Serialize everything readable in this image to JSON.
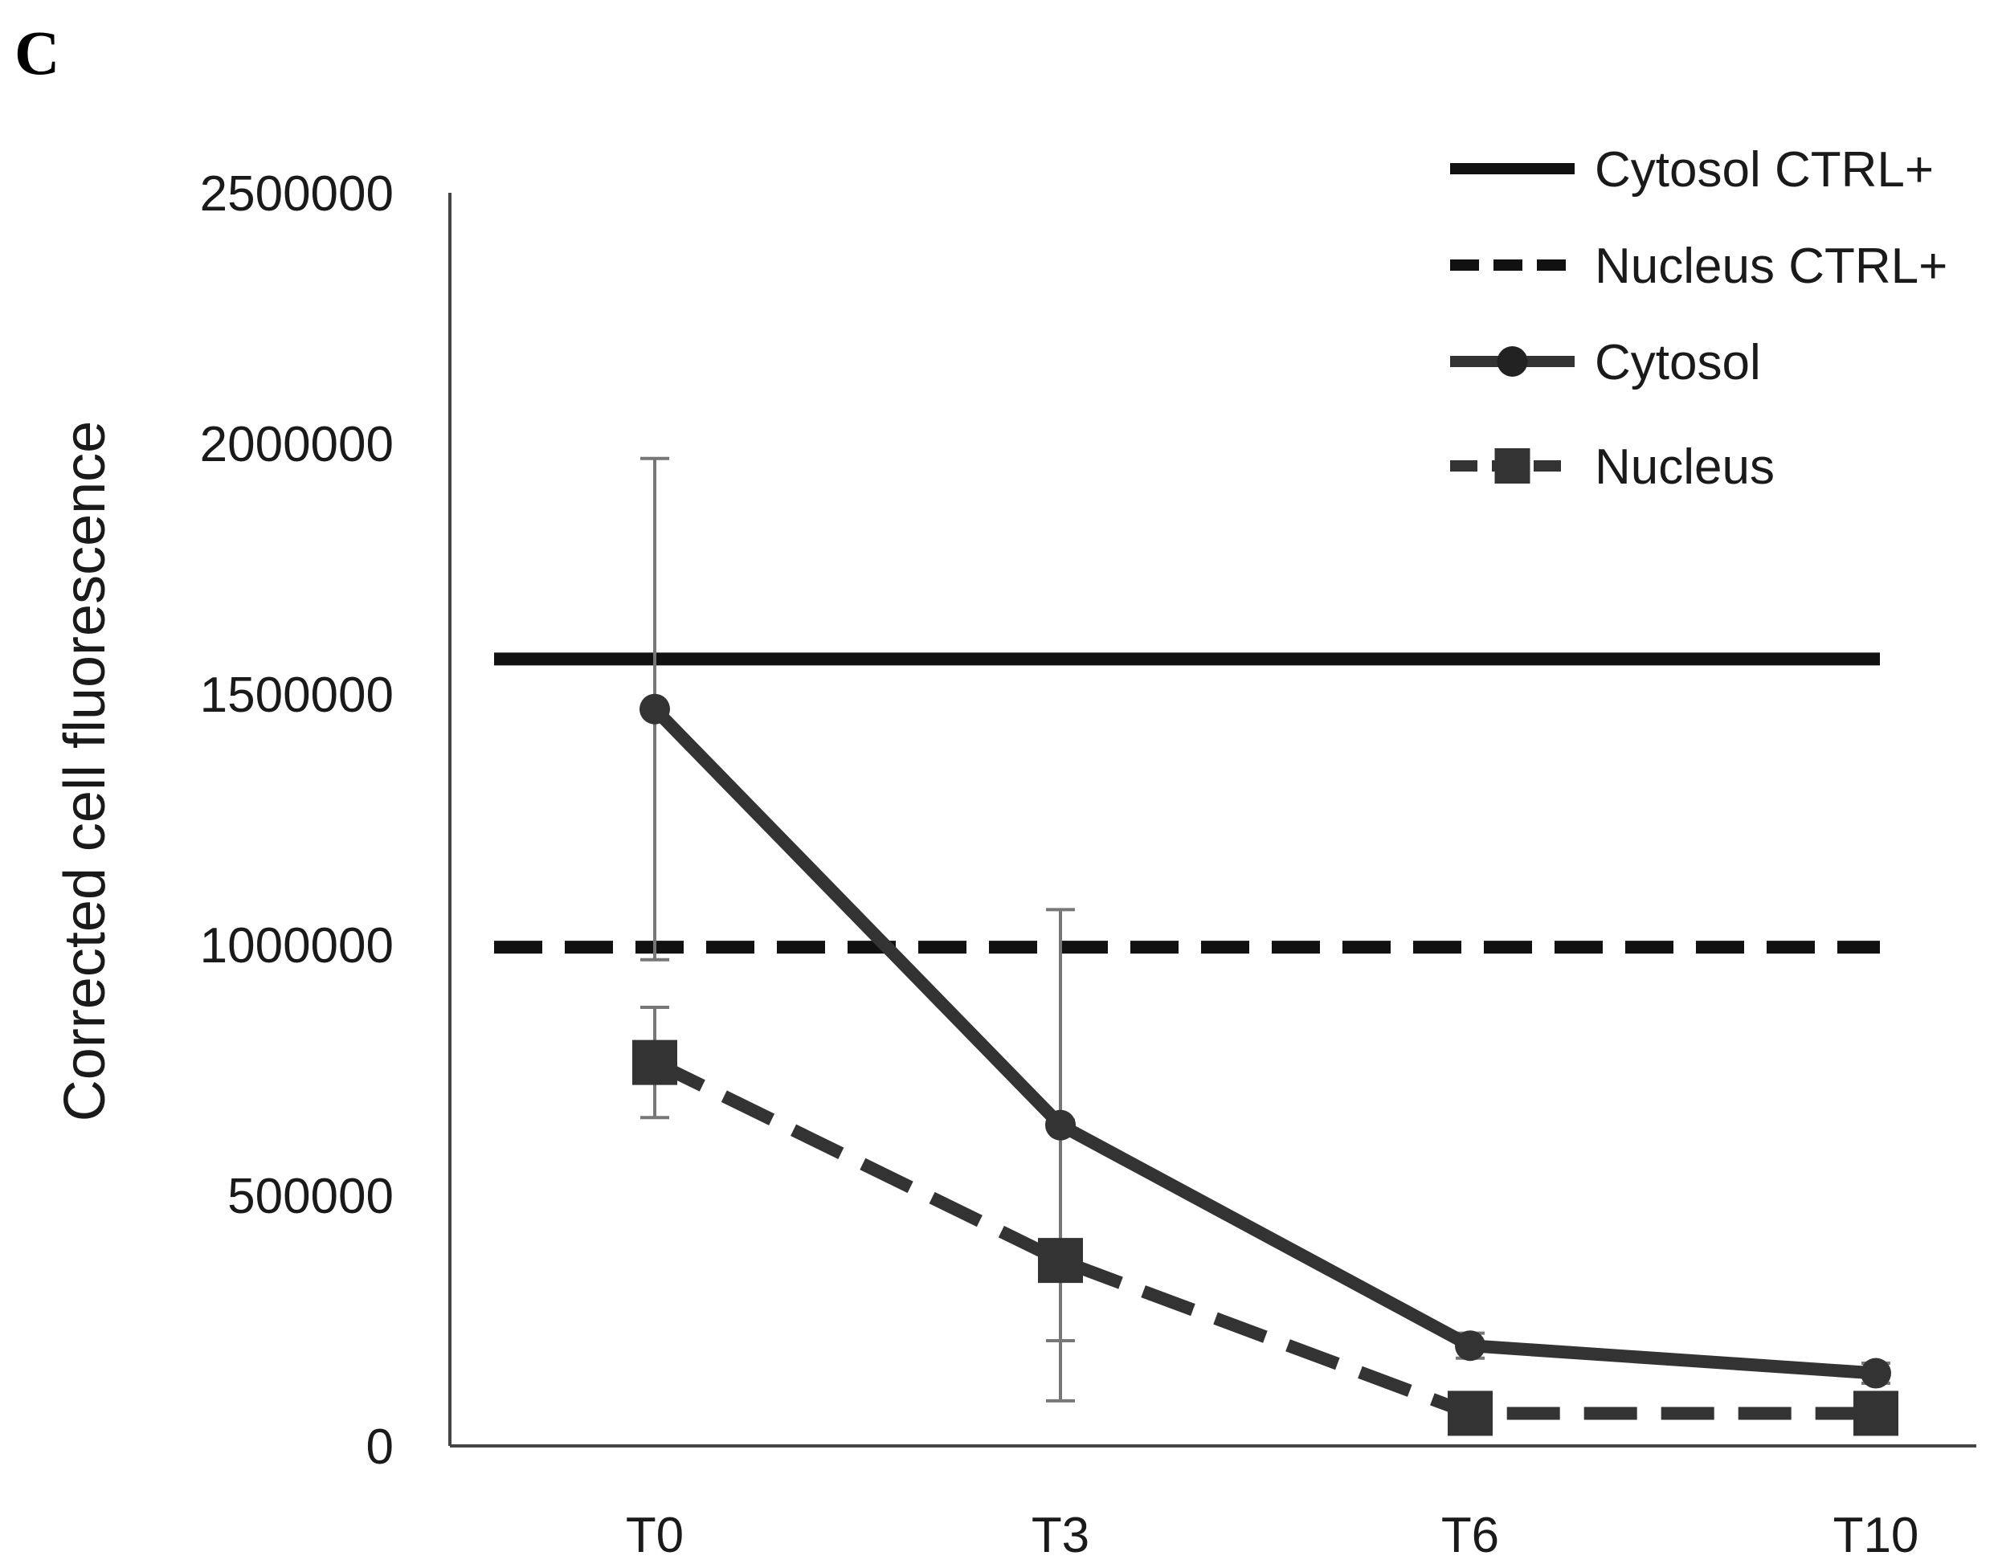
{
  "panel_label": "C",
  "chart_data": {
    "type": "line",
    "title": "",
    "xlabel": "",
    "ylabel": "Corrected cell fluorescence",
    "categories": [
      "T0",
      "T3",
      "T6",
      "T10"
    ],
    "ylim": [
      0,
      2500000
    ],
    "yticks": [
      0,
      500000,
      1000000,
      1500000,
      2000000,
      2500000
    ],
    "ytick_labels": [
      "0",
      "500000",
      "1000000",
      "1500000",
      "2000000",
      "2500000"
    ],
    "grid": false,
    "legend_position": "top-right",
    "series": [
      {
        "name": "Cytosol CTRL+",
        "kind": "reference-line",
        "style": "solid",
        "color": "#111111",
        "value": 1570000
      },
      {
        "name": "Nucleus CTRL+",
        "kind": "reference-line",
        "style": "dashed",
        "color": "#111111",
        "value": 995000
      },
      {
        "name": "Cytosol",
        "kind": "series",
        "style": "solid",
        "marker": "circle",
        "color": "#333333",
        "values": [
          1470000,
          640000,
          200000,
          145000
        ],
        "error": [
          500000,
          430000,
          25000,
          20000
        ]
      },
      {
        "name": "Nucleus",
        "kind": "series",
        "style": "dashed",
        "marker": "square",
        "color": "#333333",
        "values": [
          765000,
          370000,
          65000,
          65000
        ],
        "error": [
          110000,
          280000,
          30000,
          30000
        ]
      }
    ]
  }
}
